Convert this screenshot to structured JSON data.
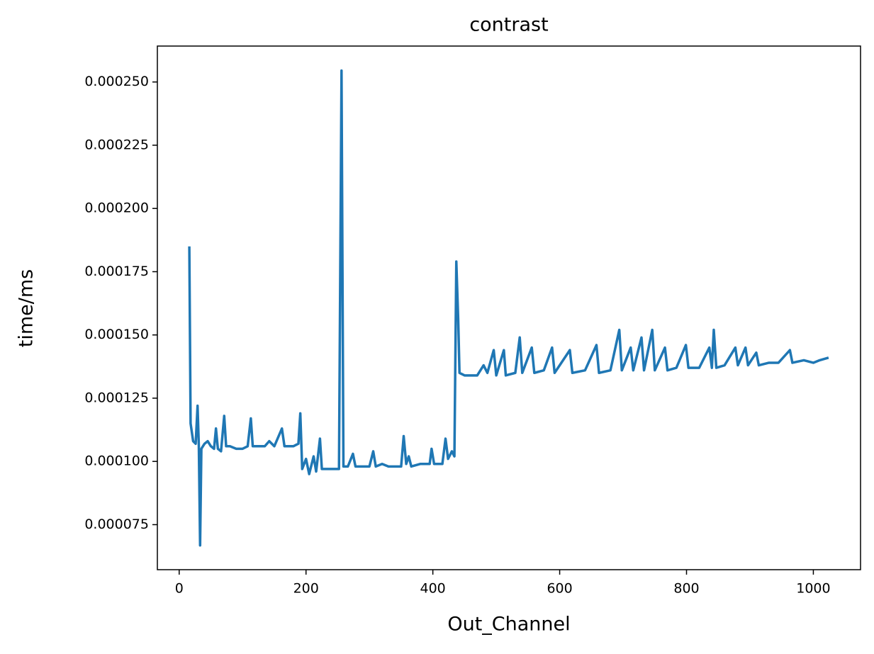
{
  "chart_data": {
    "type": "line",
    "title": "contrast",
    "x_label": "Out_Channel",
    "y_label": "time/ms",
    "color": "#1f77b4",
    "x": [
      16,
      18,
      22,
      26,
      29,
      31,
      33,
      35,
      40,
      45,
      50,
      55,
      58,
      61,
      66,
      71,
      74,
      80,
      90,
      100,
      108,
      113,
      116,
      125,
      135,
      142,
      150,
      162,
      166,
      180,
      188,
      191,
      194,
      200,
      205,
      212,
      216,
      222,
      225,
      235,
      245,
      252,
      256,
      259,
      266,
      274,
      278,
      290,
      300,
      306,
      310,
      320,
      330,
      340,
      350,
      354,
      358,
      362,
      366,
      380,
      395,
      398,
      402,
      415,
      420,
      424,
      430,
      434,
      437,
      440,
      442,
      450,
      460,
      470,
      480,
      486,
      496,
      500,
      512,
      515,
      530,
      537,
      541,
      556,
      560,
      575,
      588,
      592,
      616,
      620,
      640,
      658,
      662,
      680,
      694,
      698,
      712,
      716,
      729,
      733,
      746,
      750,
      766,
      770,
      784,
      799,
      803,
      820,
      836,
      840,
      843,
      847,
      860,
      877,
      881,
      893,
      897,
      910,
      914,
      930,
      945,
      963,
      967,
      985,
      1000,
      1010,
      1024
    ],
    "values": [
      0.000185,
      0.000115,
      0.000108,
      0.000107,
      0.000122,
      0.000106,
      6.68e-05,
      0.000105,
      0.000107,
      0.000108,
      0.000106,
      0.000105,
      0.000113,
      0.000105,
      0.000104,
      0.000118,
      0.000106,
      0.000106,
      0.000105,
      0.000105,
      0.000106,
      0.000117,
      0.000106,
      0.000106,
      0.000106,
      0.000108,
      0.000106,
      0.000113,
      0.000106,
      0.000106,
      0.000107,
      0.000119,
      9.7e-05,
      0.000101,
      9.5e-05,
      0.000102,
      9.6e-05,
      0.000109,
      9.7e-05,
      9.7e-05,
      9.7e-05,
      9.7e-05,
      0.0002545,
      9.8e-05,
      9.8e-05,
      0.000103,
      9.8e-05,
      9.8e-05,
      9.8e-05,
      0.000104,
      9.8e-05,
      9.9e-05,
      9.8e-05,
      9.8e-05,
      9.8e-05,
      0.00011,
      9.9e-05,
      0.000102,
      9.8e-05,
      9.9e-05,
      9.9e-05,
      0.000105,
      9.9e-05,
      9.9e-05,
      0.000109,
      0.000101,
      0.000104,
      0.000102,
      0.000179,
      0.000156,
      0.000135,
      0.000134,
      0.000134,
      0.000134,
      0.000138,
      0.000135,
      0.000144,
      0.000134,
      0.000144,
      0.000134,
      0.000135,
      0.000149,
      0.000135,
      0.000145,
      0.000135,
      0.000136,
      0.000145,
      0.000135,
      0.000144,
      0.000135,
      0.000136,
      0.000146,
      0.000135,
      0.000136,
      0.000152,
      0.000136,
      0.000145,
      0.000136,
      0.000149,
      0.000136,
      0.000152,
      0.000136,
      0.000145,
      0.000136,
      0.000137,
      0.000146,
      0.000137,
      0.000137,
      0.000145,
      0.000137,
      0.000152,
      0.000137,
      0.000138,
      0.000145,
      0.000138,
      0.000145,
      0.000138,
      0.000143,
      0.000138,
      0.000139,
      0.000139,
      0.000144,
      0.000139,
      0.00014,
      0.000139,
      0.00014,
      0.000141
    ],
    "xlim": [
      -34.4,
      1074.4
    ],
    "xticks": [
      0,
      200,
      400,
      600,
      800,
      1000
    ],
    "ylim": [
      5.72e-05,
      0.0002642
    ],
    "yticks": [
      {
        "value": 7.5e-05,
        "label": "0.000075"
      },
      {
        "value": 0.0001,
        "label": "0.000100"
      },
      {
        "value": 0.000125,
        "label": "0.000125"
      },
      {
        "value": 0.00015,
        "label": "0.000150"
      },
      {
        "value": 0.000175,
        "label": "0.000175"
      },
      {
        "value": 0.0002,
        "label": "0.000200"
      },
      {
        "value": 0.000225,
        "label": "0.000225"
      },
      {
        "value": 0.00025,
        "label": "0.000250"
      }
    ],
    "grid": false
  }
}
